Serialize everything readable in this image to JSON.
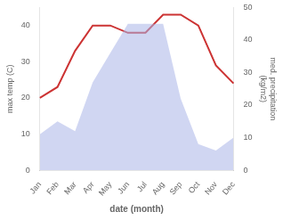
{
  "chart_data": {
    "type": "line",
    "xlabel": "date (month)",
    "ylabel": "max temp (C)",
    "y2label": "med. precipitation\n(kg/m2)",
    "categories": [
      "Jan",
      "Feb",
      "Mar",
      "Apr",
      "May",
      "Jun",
      "Jul",
      "Aug",
      "Sep",
      "Oct",
      "Nov",
      "Dec"
    ],
    "series": [
      {
        "type": "area",
        "axis": "y2",
        "color": "#aab4e8",
        "values": [
          11,
          15,
          12,
          27,
          36,
          45,
          45,
          45,
          22,
          8,
          6,
          10
        ]
      },
      {
        "type": "line",
        "color": "#cc3333",
        "values": [
          20,
          23,
          33,
          40,
          40,
          38,
          38,
          43,
          43,
          40,
          29,
          24
        ]
      }
    ],
    "ylim": [
      0,
      45
    ],
    "yticks": [
      0,
      10,
      20,
      30,
      40
    ],
    "y2lim": [
      0,
      50
    ],
    "y2ticks": [
      0,
      10,
      20,
      30,
      40,
      50
    ],
    "grid": false
  }
}
